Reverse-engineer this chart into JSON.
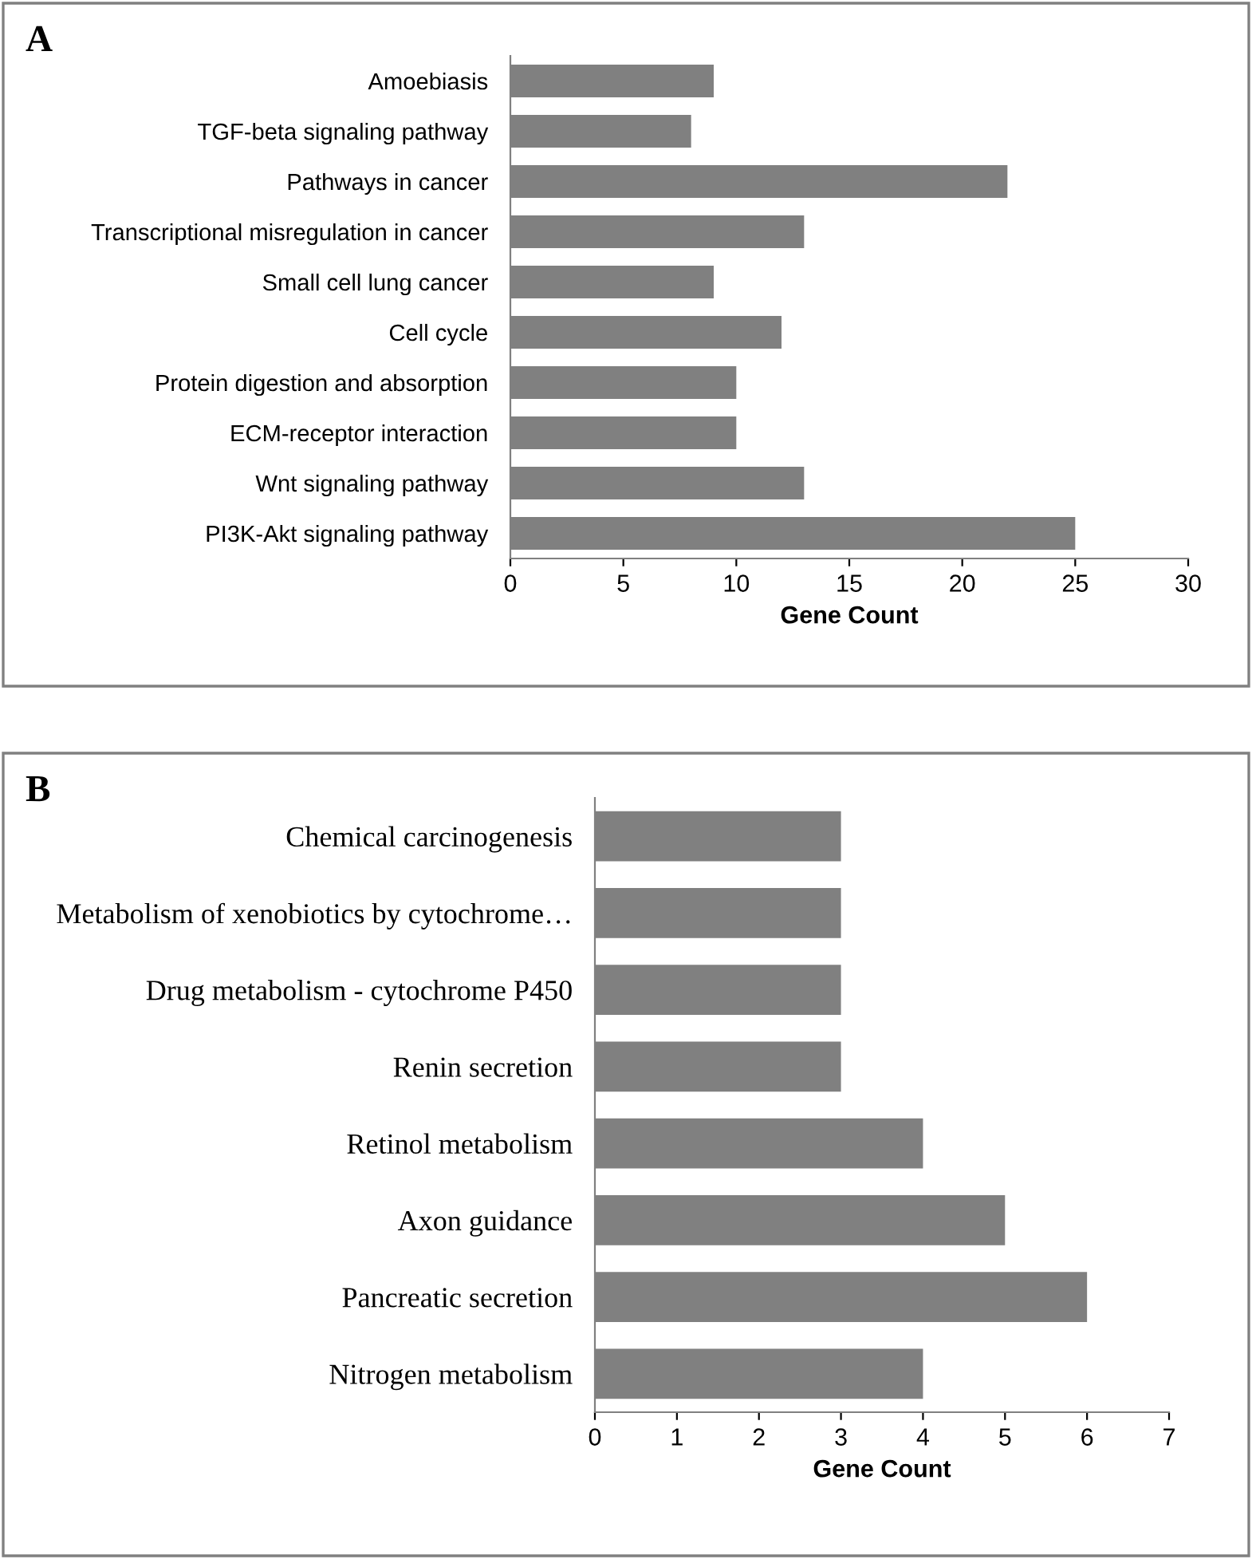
{
  "chart_data": [
    {
      "type": "bar",
      "orientation": "horizontal",
      "annotations": [
        "A"
      ],
      "xlabel": "Gene Count",
      "categories": [
        "Amoebiasis",
        "TGF-beta signaling pathway",
        "Pathways in cancer",
        "Transcriptional misregulation in cancer",
        "Small cell lung cancer",
        "Cell cycle",
        "Protein digestion and absorption",
        "ECM-receptor interaction",
        "Wnt signaling pathway",
        "PI3K-Akt signaling pathway"
      ],
      "values": [
        9,
        8,
        22,
        13,
        9,
        12,
        10,
        10,
        13,
        25
      ],
      "color": "#808080",
      "xlim": [
        0,
        30
      ],
      "xticks": [
        0,
        5,
        10,
        15,
        20,
        25,
        30
      ],
      "grid": false,
      "legend": false
    },
    {
      "type": "bar",
      "orientation": "horizontal",
      "annotations": [
        "B"
      ],
      "xlabel": "Gene Count",
      "categories": [
        "Chemical carcinogenesis",
        "Metabolism of xenobiotics by cytochrome…",
        "Drug metabolism - cytochrome P450",
        "Renin secretion",
        "Retinol metabolism",
        "Axon guidance",
        "Pancreatic secretion",
        "Nitrogen metabolism"
      ],
      "values": [
        3,
        3,
        3,
        3,
        4,
        5,
        6,
        4
      ],
      "color": "#808080",
      "xlim": [
        0,
        7
      ],
      "xticks": [
        0,
        1,
        2,
        3,
        4,
        5,
        6,
        7
      ],
      "grid": false,
      "legend": false
    }
  ]
}
